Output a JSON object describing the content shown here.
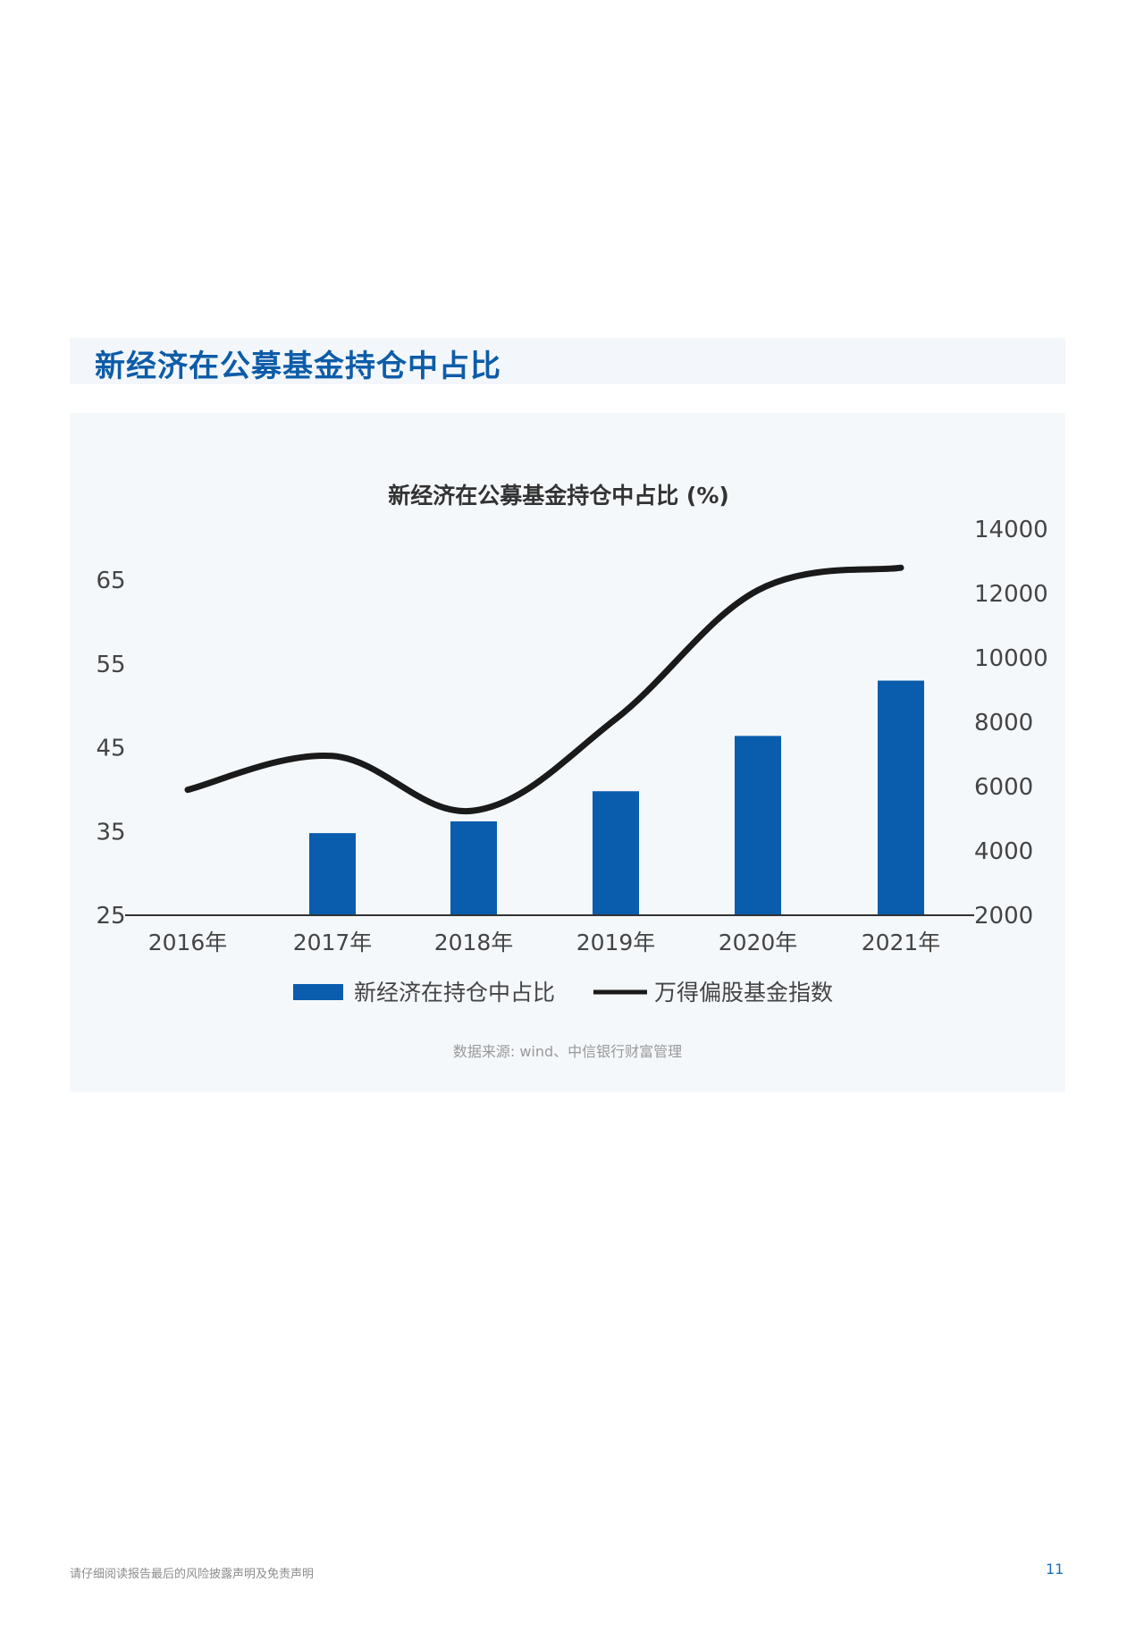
{
  "section_title": "新经济在公募基金持仓中占比",
  "source_note": "数据来源: wind、中信银行财富管理",
  "footer_disclaimer": "请仔细阅读报告最后的风险披露声明及免责声明",
  "page_number": "11",
  "colors": {
    "bar": "#0a5cad",
    "line": "#1a1a1a",
    "title_blue": "#0d5ca8"
  },
  "chart_data": {
    "type": "bar",
    "title": "新经济在公募基金持仓中占比 (%)",
    "categories": [
      "2016年",
      "2017年",
      "2018年",
      "2019年",
      "2020年",
      "2021年"
    ],
    "left_axis": {
      "ticks": [
        "65",
        "55",
        "45",
        "35",
        "25"
      ],
      "range": [
        25,
        65
      ]
    },
    "right_axis": {
      "ticks": [
        "14000",
        "12000",
        "10000",
        "8000",
        "6000",
        "4000",
        "2000"
      ],
      "range": [
        2000,
        14000
      ]
    },
    "series": [
      {
        "name": "新经济在持仓中占比",
        "kind": "bar",
        "axis": "left",
        "values": [
          null,
          34.8,
          36.2,
          39.8,
          46.4,
          53.0
        ]
      },
      {
        "name": "万得偏股基金指数",
        "kind": "line",
        "axis": "right",
        "values": [
          5900,
          6950,
          5250,
          8100,
          12100,
          12800
        ]
      }
    ],
    "legend_position": "bottom",
    "grid": false
  }
}
